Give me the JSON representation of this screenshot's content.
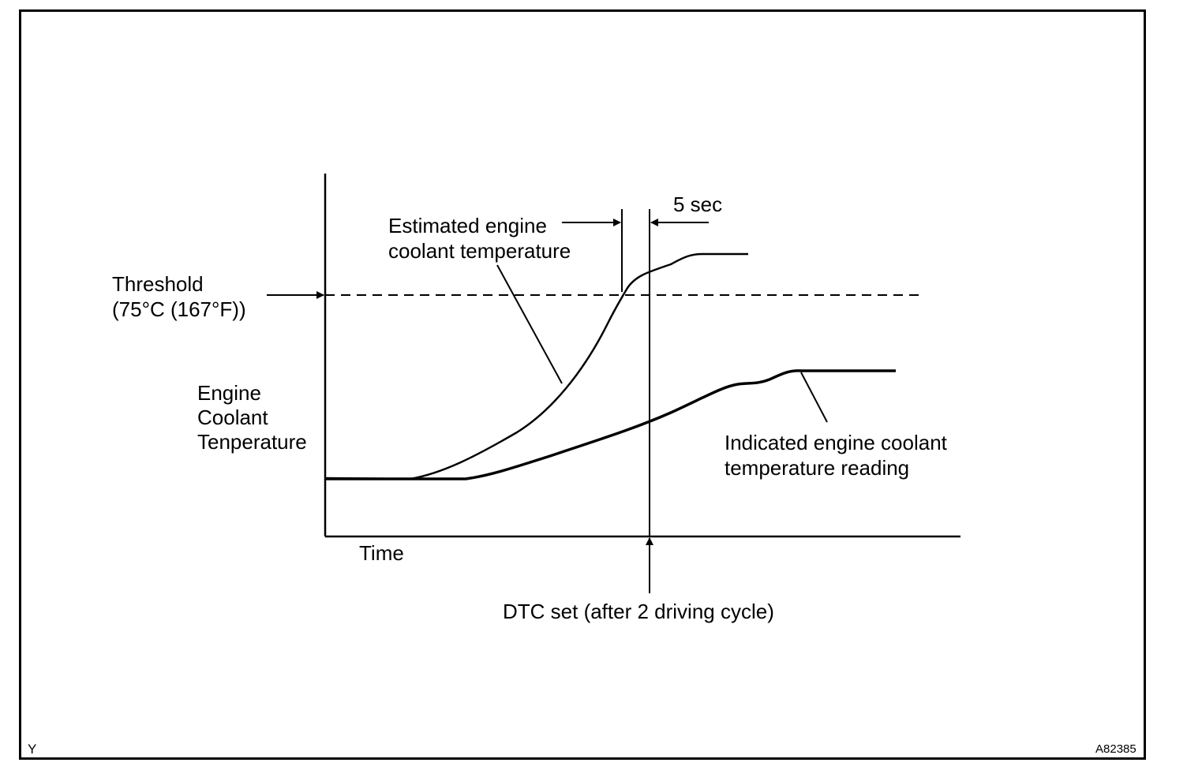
{
  "labels": {
    "threshold_line1": "Threshold",
    "threshold_line2": "(75°C (167°F))",
    "y_axis_line1": "Engine",
    "y_axis_line2": "Coolant",
    "y_axis_line3": "Tenperature",
    "x_axis": "Time",
    "estimated_line1": "Estimated engine",
    "estimated_line2": "coolant temperature",
    "indicated_line1": "Indicated  engine  coolant",
    "indicated_line2": "temperature reading",
    "five_sec": "5 sec",
    "dtc": "DTC set (after 2 driving cycle)",
    "corner_left": "Y",
    "corner_right": "A82385"
  }
}
